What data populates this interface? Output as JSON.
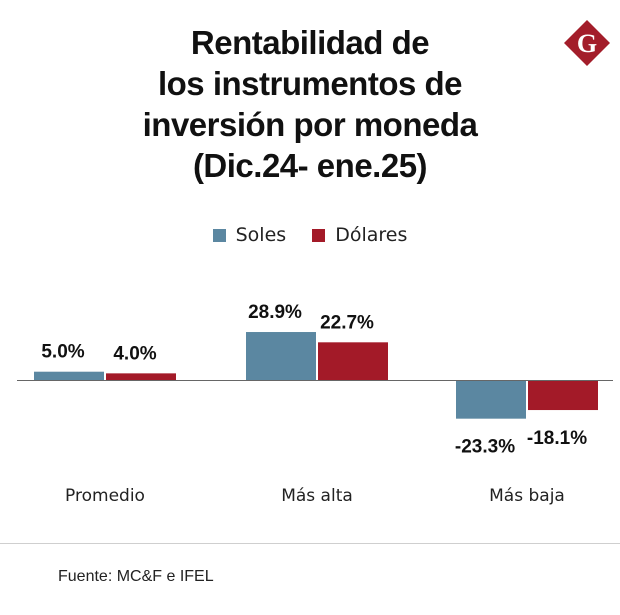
{
  "title_lines": [
    "Rentabilidad de",
    "los instrumentos de",
    "inversión por moneda",
    "(Dic.24- ene.25)"
  ],
  "logo": {
    "icon": "gestion-g-logo",
    "letter": "G",
    "color": "#a31d2a"
  },
  "legend": [
    {
      "label": "Soles",
      "color": "#5b87a1"
    },
    {
      "label": "Dólares",
      "color": "#a31a28"
    }
  ],
  "source": "Fuente: MC&F e IFEL",
  "chart_data": {
    "type": "bar",
    "title": "Rentabilidad de los instrumentos de inversión por moneda (Dic.24- ene.25)",
    "xlabel": "",
    "ylabel": "",
    "categories": [
      "Promedio",
      "Más alta",
      "Más baja"
    ],
    "series": [
      {
        "name": "Soles",
        "color": "#5b87a1",
        "values": [
          5.0,
          28.9,
          -23.3
        ],
        "labels": [
          "5.0%",
          "28.9%",
          "-23.3%"
        ]
      },
      {
        "name": "Dólares",
        "color": "#a31a28",
        "values": [
          4.0,
          22.7,
          -18.1
        ],
        "labels": [
          "4.0%",
          "22.7%",
          "-18.1%"
        ]
      }
    ],
    "ylim": [
      -30,
      35
    ],
    "grid": false,
    "legend_position": "top-center",
    "axis_visible": false,
    "zero_line": true
  }
}
